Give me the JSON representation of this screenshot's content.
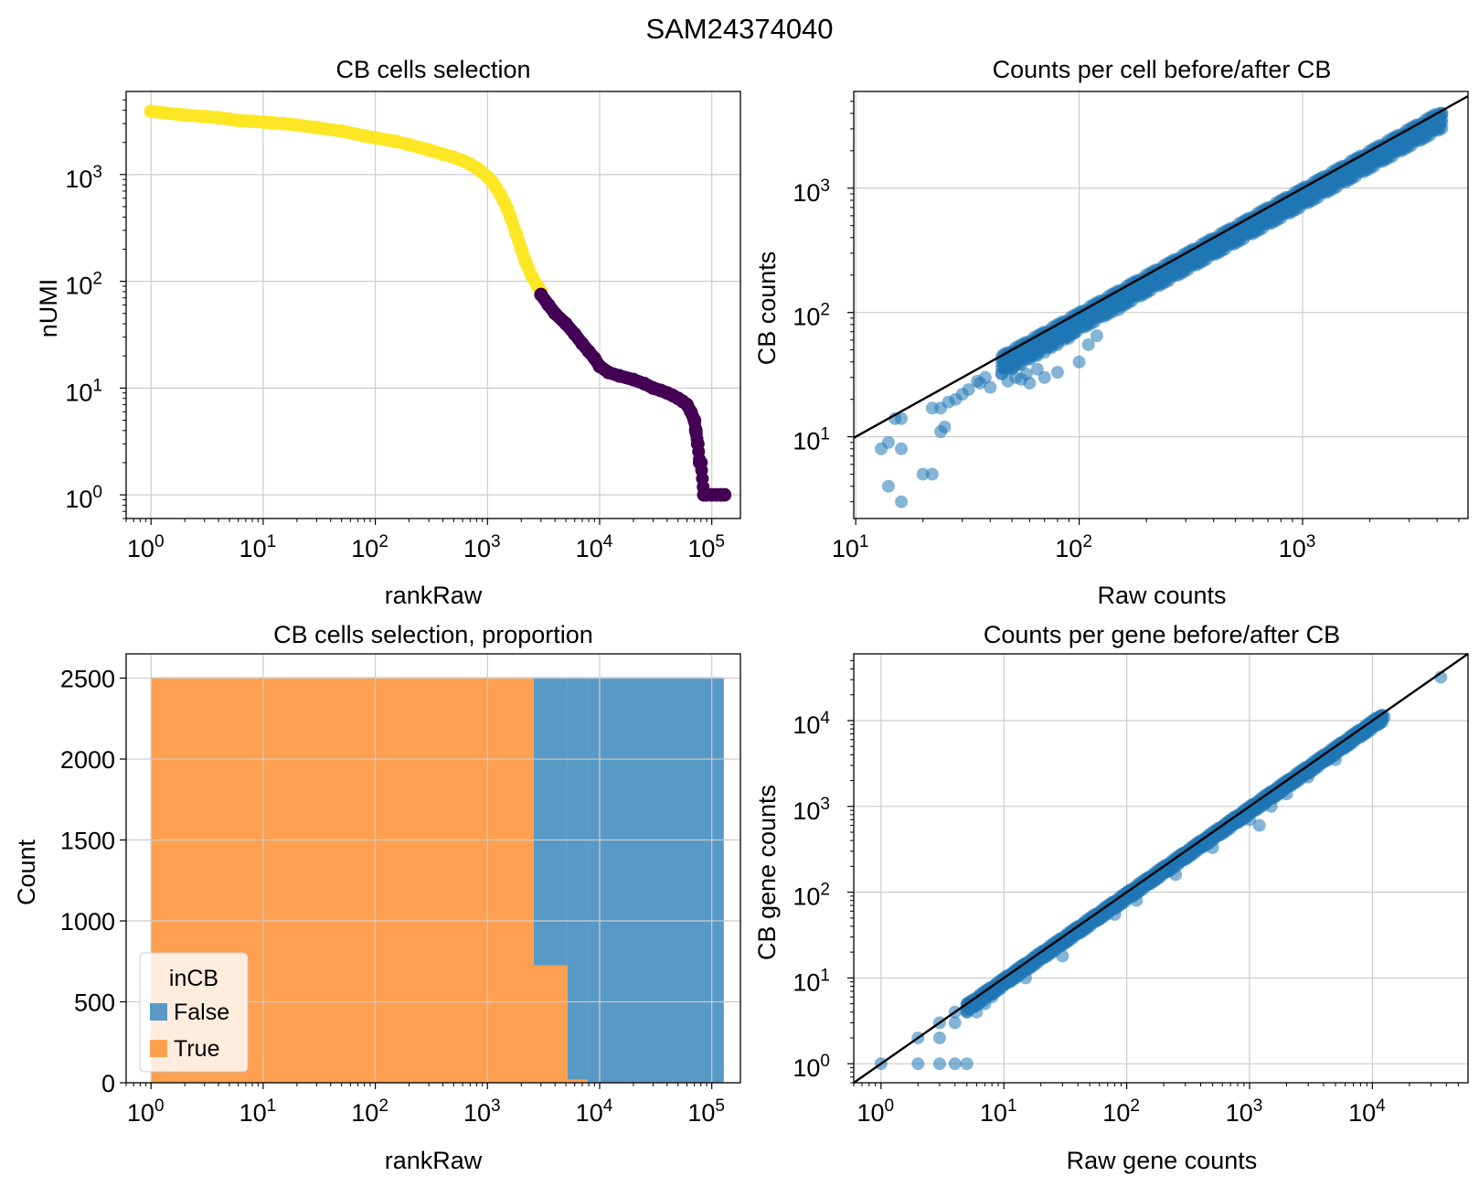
{
  "figure": {
    "suptitle": "SAM24374040"
  },
  "colors": {
    "yellow": "#fde725",
    "purple": "#440154",
    "blue": "#1f77b4",
    "hist_false": "#5899c6",
    "hist_true": "#fea04f",
    "grid": "#cccccc",
    "line": "#000000"
  },
  "chart_data": [
    {
      "id": "top-left",
      "type": "scatter",
      "title": "CB cells selection",
      "xlabel": "rankRaw",
      "ylabel": "nUMI",
      "xscale": "log",
      "yscale": "log",
      "xlim": [
        0.6,
        180000
      ],
      "ylim": [
        0.6,
        6000
      ],
      "xticks": [
        1,
        10,
        100,
        1000,
        10000,
        100000
      ],
      "yticks": [
        1,
        10,
        100,
        1000
      ],
      "grid": true,
      "series": [
        {
          "color": "yellow",
          "x": [
            1,
            2,
            3,
            4,
            5,
            6,
            8,
            10,
            12,
            15,
            20,
            30,
            50,
            80,
            100,
            150,
            200,
            300,
            400,
            500,
            600,
            700,
            800,
            900,
            1000,
            1100,
            1200,
            1300,
            1400,
            1500,
            1600,
            1800,
            2000,
            2200,
            2500,
            2800,
            3000
          ],
          "y": [
            3900,
            3600,
            3500,
            3400,
            3300,
            3200,
            3150,
            3100,
            3050,
            3000,
            2900,
            2750,
            2550,
            2300,
            2200,
            2050,
            1900,
            1700,
            1550,
            1450,
            1350,
            1250,
            1150,
            1050,
            950,
            850,
            750,
            650,
            560,
            480,
            400,
            280,
            200,
            150,
            110,
            90,
            80
          ]
        },
        {
          "color": "purple",
          "x": [
            3000,
            3500,
            4000,
            5000,
            6000,
            7000,
            8000,
            9000,
            10000,
            12000,
            15000,
            20000,
            25000,
            30000,
            35000,
            40000,
            45000,
            50000,
            55000,
            60000,
            65000,
            70000,
            72000,
            75000,
            78000,
            80000,
            85000,
            90000,
            100000,
            110000,
            120000,
            130000
          ],
          "y": [
            75,
            60,
            50,
            40,
            32,
            26,
            22,
            19,
            16,
            14,
            13,
            12,
            11,
            10,
            9.5,
            9,
            8.5,
            8,
            7.5,
            7,
            6,
            5,
            4,
            3,
            2,
            2,
            1,
            1,
            1,
            1,
            1,
            1
          ]
        }
      ]
    },
    {
      "id": "top-right",
      "type": "scatter",
      "title": "Counts per cell before/after CB",
      "xlabel": "Raw counts",
      "ylabel": "CB counts",
      "xscale": "log",
      "yscale": "log",
      "xlim": [
        9.8,
        5500
      ],
      "ylim": [
        2.2,
        6000
      ],
      "xticks": [
        10,
        100,
        1000
      ],
      "yticks": [
        10,
        100,
        1000
      ],
      "grid": true,
      "diagonal": true,
      "band": {
        "from": 45,
        "to": 4200,
        "upper": 1.0,
        "lower": 0.72
      },
      "points": [
        [
          13,
          8
        ],
        [
          14,
          9
        ],
        [
          15,
          14
        ],
        [
          16,
          14
        ],
        [
          14,
          4
        ],
        [
          16,
          3
        ],
        [
          16,
          8
        ],
        [
          20,
          5
        ],
        [
          22,
          5
        ],
        [
          22,
          17
        ],
        [
          24,
          17
        ],
        [
          26,
          19
        ],
        [
          24,
          11
        ],
        [
          25,
          12
        ],
        [
          28,
          20
        ],
        [
          30,
          22
        ],
        [
          32,
          24
        ],
        [
          35,
          28
        ],
        [
          38,
          30
        ],
        [
          40,
          25
        ],
        [
          45,
          32
        ],
        [
          48,
          28
        ],
        [
          50,
          35
        ],
        [
          52,
          30
        ],
        [
          55,
          38
        ],
        [
          58,
          32
        ],
        [
          60,
          42
        ],
        [
          65,
          45
        ],
        [
          70,
          48
        ],
        [
          75,
          52
        ],
        [
          80,
          55
        ],
        [
          85,
          60
        ],
        [
          90,
          62
        ],
        [
          95,
          68
        ],
        [
          110,
          55
        ],
        [
          120,
          65
        ],
        [
          100,
          40
        ],
        [
          60,
          27
        ],
        [
          55,
          29
        ],
        [
          70,
          30
        ],
        [
          80,
          33
        ],
        [
          65,
          35
        ],
        [
          150,
          105
        ],
        [
          200,
          150
        ],
        [
          300,
          230
        ],
        [
          400,
          300
        ],
        [
          600,
          460
        ],
        [
          900,
          720
        ],
        [
          1300,
          1050
        ],
        [
          2000,
          1700
        ],
        [
          3000,
          2600
        ],
        [
          4000,
          3700
        ],
        [
          4200,
          4000
        ],
        [
          36,
          27
        ]
      ]
    },
    {
      "id": "bottom-left",
      "type": "bar",
      "title": "CB cells selection, proportion",
      "xlabel": "rankRaw",
      "ylabel": "Count",
      "xscale": "log",
      "xlim": [
        0.6,
        180000
      ],
      "ylim": [
        0,
        2650
      ],
      "xticks": [
        1,
        10,
        100,
        1000,
        10000,
        100000
      ],
      "yticks": [
        0,
        500,
        1000,
        1500,
        2000,
        2500
      ],
      "grid": true,
      "bins": [
        {
          "x0": 1,
          "x1": 2590,
          "false": 0,
          "true": 2505
        },
        {
          "x0": 2590,
          "x1": 5180,
          "false": 1780,
          "true": 725
        },
        {
          "x0": 5180,
          "x1": 7770,
          "false": 2485,
          "true": 20
        },
        {
          "x0": 7770,
          "x1": 128000,
          "false": 2505,
          "true": 0
        }
      ],
      "legend": {
        "title": "inCB",
        "position": "lower-left",
        "entries": [
          {
            "label": "False",
            "color": "hist_false"
          },
          {
            "label": "True",
            "color": "hist_true"
          }
        ]
      }
    },
    {
      "id": "bottom-right",
      "type": "scatter",
      "title": "Counts per gene before/after CB",
      "xlabel": "Raw gene counts",
      "ylabel": "CB gene counts",
      "xscale": "log",
      "yscale": "log",
      "xlim": [
        0.6,
        60000
      ],
      "ylim": [
        0.6,
        60000
      ],
      "xticks": [
        1,
        10,
        100,
        1000,
        10000
      ],
      "yticks": [
        1,
        10,
        100,
        1000,
        10000
      ],
      "grid": true,
      "diagonal": true,
      "band": {
        "from": 5,
        "to": 12000,
        "upper": 1.0,
        "lower": 0.8
      },
      "points": [
        [
          1,
          1
        ],
        [
          2,
          1
        ],
        [
          2,
          2
        ],
        [
          3,
          1
        ],
        [
          3,
          2
        ],
        [
          3,
          3
        ],
        [
          4,
          1
        ],
        [
          4,
          3
        ],
        [
          5,
          1
        ],
        [
          4,
          4
        ],
        [
          5,
          4
        ],
        [
          5,
          5
        ],
        [
          6,
          5
        ],
        [
          6,
          4
        ],
        [
          7,
          5
        ],
        [
          8,
          6
        ],
        [
          15,
          10
        ],
        [
          30,
          18
        ],
        [
          80,
          55
        ],
        [
          120,
          80
        ],
        [
          250,
          160
        ],
        [
          500,
          330
        ],
        [
          1000,
          700
        ],
        [
          1200,
          600
        ],
        [
          1500,
          1000
        ],
        [
          2000,
          1400
        ],
        [
          3000,
          2200
        ],
        [
          5000,
          3500
        ],
        [
          8000,
          7000
        ],
        [
          12000,
          11500
        ],
        [
          12500,
          11000
        ],
        [
          36000,
          32000
        ]
      ]
    }
  ]
}
